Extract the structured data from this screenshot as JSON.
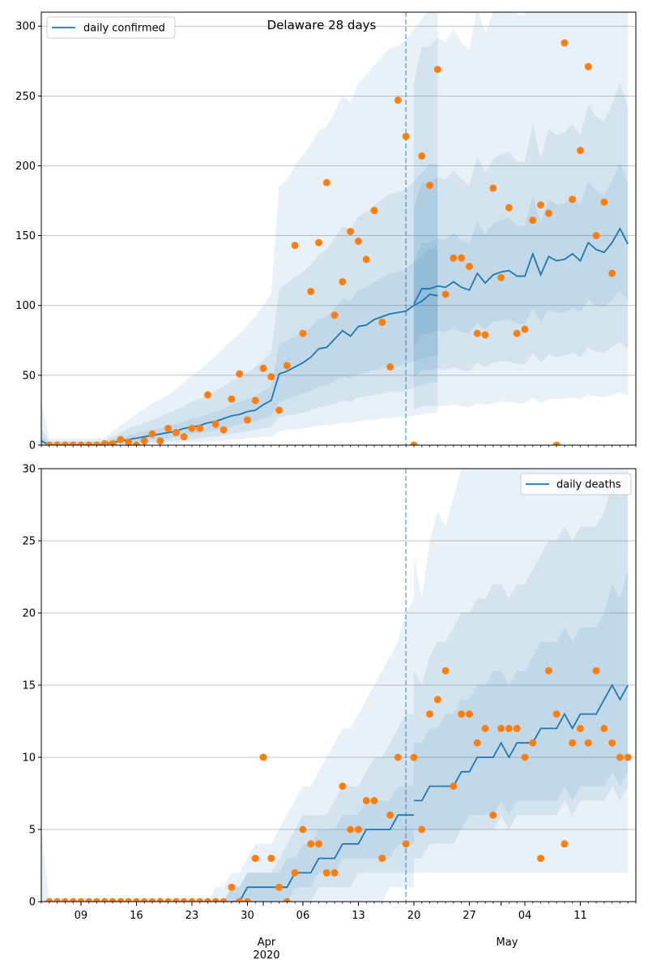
{
  "chart_data": [
    {
      "type": "line",
      "title": "Delaware 28 days",
      "legend": {
        "label": "daily confirmed",
        "placement": "upper-left"
      },
      "xlabel": "",
      "ylabel": "",
      "x_start": "2020-03-04",
      "x_end": "2020-05-18",
      "split_date": "2020-04-20",
      "ylim": [
        0,
        310
      ],
      "yticks": [
        0,
        50,
        100,
        150,
        200,
        250,
        300
      ],
      "series": [
        {
          "name": "daily confirmed",
          "line_fit": [
            3,
            0,
            0,
            0,
            0,
            0,
            0,
            0,
            1,
            2,
            3,
            4,
            5,
            6,
            7,
            8,
            9,
            10,
            12,
            13,
            14,
            16,
            17,
            19,
            21,
            22,
            24,
            25,
            29,
            32,
            51,
            53,
            56,
            59,
            63,
            69,
            70,
            76,
            82,
            78,
            85,
            86,
            90,
            92,
            94,
            95,
            96,
            100,
            103,
            108,
            107
          ],
          "line_forecast": [
            101,
            112,
            112,
            114,
            113,
            117,
            113,
            111,
            123,
            116,
            122,
            124,
            125,
            121,
            121,
            137,
            122,
            135,
            132,
            133,
            137,
            132,
            145,
            140,
            138,
            145,
            155,
            144
          ]
        }
      ],
      "observed": [
        0,
        0,
        0,
        0,
        0,
        0,
        0,
        1,
        1,
        4,
        2,
        0,
        3,
        8,
        3,
        12,
        9,
        6,
        12,
        12,
        36,
        15,
        11,
        33,
        51,
        18,
        32,
        55,
        49,
        25,
        57,
        143,
        80,
        110,
        145,
        188,
        93,
        117,
        153,
        146,
        133,
        168,
        88,
        56,
        247,
        221,
        0,
        207,
        186,
        269,
        108,
        134,
        134,
        128,
        80,
        79,
        184,
        120,
        170,
        80,
        83,
        161,
        172,
        166,
        0,
        288,
        176,
        211,
        271,
        150,
        174,
        123
      ],
      "bands": {
        "inner_lo": [
          0,
          0,
          0,
          0,
          0,
          0,
          0,
          0,
          0,
          1,
          1,
          2,
          2,
          3,
          4,
          4,
          5,
          6,
          7,
          8,
          9,
          10,
          11,
          12,
          13,
          15,
          16,
          17,
          19,
          21,
          31,
          33,
          35,
          37,
          39,
          42,
          43,
          46,
          49,
          48,
          51,
          52,
          54,
          55,
          56,
          57,
          58,
          60,
          62,
          64,
          64
        ],
        "inner_hi": [
          6,
          2,
          2,
          2,
          2,
          2,
          2,
          2,
          2,
          4,
          5,
          7,
          8,
          10,
          11,
          12,
          14,
          15,
          17,
          19,
          20,
          22,
          24,
          26,
          29,
          31,
          33,
          35,
          39,
          42,
          72,
          75,
          78,
          81,
          84,
          90,
          92,
          98,
          105,
          103,
          111,
          113,
          117,
          120,
          123,
          124,
          126,
          131,
          135,
          141,
          140
        ],
        "mid_lo": [
          0,
          0,
          0,
          0,
          0,
          0,
          0,
          0,
          0,
          0,
          0,
          1,
          1,
          1,
          2,
          2,
          3,
          3,
          4,
          4,
          5,
          6,
          6,
          7,
          8,
          9,
          10,
          11,
          12,
          13,
          20,
          21,
          22,
          23,
          25,
          27,
          28,
          30,
          32,
          31,
          34,
          35,
          36,
          37,
          38,
          38,
          39,
          41,
          43,
          45,
          45
        ],
        "mid_hi": [
          12,
          3,
          3,
          3,
          3,
          3,
          3,
          3,
          3,
          6,
          9,
          12,
          14,
          16,
          18,
          20,
          23,
          25,
          28,
          31,
          33,
          36,
          39,
          42,
          46,
          49,
          52,
          56,
          61,
          66,
          112,
          116,
          120,
          124,
          129,
          137,
          140,
          148,
          157,
          154,
          164,
          167,
          172,
          176,
          180,
          181,
          183,
          189,
          195,
          202,
          201
        ],
        "outer_lo": [
          0,
          0,
          0,
          0,
          0,
          0,
          0,
          0,
          0,
          0,
          0,
          0,
          0,
          0,
          1,
          1,
          1,
          1,
          2,
          2,
          2,
          3,
          3,
          3,
          4,
          4,
          5,
          5,
          6,
          6,
          10,
          11,
          11,
          12,
          13,
          14,
          14,
          15,
          16,
          16,
          17,
          18,
          18,
          19,
          19,
          20,
          20,
          21,
          22,
          23,
          23
        ],
        "outer_hi": [
          30,
          5,
          5,
          5,
          5,
          5,
          5,
          5,
          5,
          10,
          14,
          18,
          22,
          26,
          30,
          33,
          36,
          40,
          45,
          50,
          54,
          59,
          64,
          69,
          75,
          80,
          86,
          92,
          100,
          108,
          185,
          190,
          200,
          208,
          215,
          225,
          228,
          238,
          250,
          245,
          260,
          265,
          272,
          278,
          284,
          286,
          290,
          298,
          305,
          312,
          310
        ],
        "f_inner_lo": [
          71,
          80,
          80,
          82,
          81,
          84,
          81,
          80,
          88,
          83,
          88,
          89,
          90,
          87,
          87,
          98,
          88,
          97,
          95,
          95,
          98,
          95,
          104,
          100,
          99,
          104,
          111,
          103
        ],
        "f_inner_hi": [
          131,
          145,
          145,
          148,
          147,
          152,
          147,
          144,
          160,
          151,
          159,
          161,
          163,
          157,
          157,
          178,
          159,
          176,
          172,
          173,
          178,
          172,
          189,
          182,
          179,
          189,
          202,
          187
        ],
        "f_mid_lo": [
          48,
          54,
          54,
          55,
          54,
          56,
          54,
          53,
          59,
          56,
          59,
          60,
          60,
          58,
          58,
          66,
          59,
          65,
          63,
          64,
          66,
          63,
          70,
          67,
          66,
          70,
          74,
          69
        ],
        "f_mid_hi": [
          170,
          188,
          188,
          192,
          190,
          197,
          190,
          186,
          207,
          195,
          205,
          208,
          210,
          203,
          203,
          230,
          205,
          227,
          222,
          224,
          230,
          222,
          244,
          235,
          232,
          244,
          260,
          242
        ],
        "f_outer_lo": [
          25,
          28,
          28,
          28,
          28,
          29,
          28,
          27,
          30,
          29,
          30,
          31,
          31,
          30,
          30,
          34,
          30,
          33,
          33,
          33,
          34,
          33,
          36,
          35,
          34,
          36,
          38,
          35
        ],
        "f_outer_hi": [
          260,
          285,
          285,
          292,
          288,
          298,
          288,
          283,
          313,
          295,
          310,
          315,
          318,
          308,
          308,
          348,
          310,
          343,
          336,
          338,
          348,
          336,
          368,
          356,
          350,
          368,
          392,
          366
        ]
      }
    },
    {
      "type": "line",
      "legend": {
        "label": "daily deaths",
        "placement": "upper-right"
      },
      "xlabel": "",
      "ylabel": "",
      "ylim": [
        0,
        30
      ],
      "yticks": [
        0,
        5,
        10,
        15,
        20,
        25,
        30
      ],
      "xticks": [
        "09",
        "16",
        "23",
        "30",
        "06",
        "13",
        "20",
        "27",
        "04",
        "11"
      ],
      "month_labels": {
        "apr": "Apr",
        "year": "2020",
        "may": "May"
      },
      "series": [
        {
          "name": "daily deaths",
          "line_fit": [
            null,
            null,
            null,
            null,
            null,
            null,
            null,
            null,
            null,
            null,
            null,
            null,
            null,
            null,
            null,
            null,
            null,
            null,
            null,
            null,
            null,
            null,
            null,
            null,
            0,
            0,
            1,
            1,
            1,
            1,
            1,
            1,
            2,
            2,
            2,
            3,
            3,
            3,
            4,
            4,
            4,
            5,
            5,
            5,
            5,
            6,
            6,
            6
          ],
          "line_forecast": [
            7,
            7,
            8,
            8,
            8,
            8,
            9,
            9,
            10,
            10,
            10,
            11,
            10,
            11,
            11,
            11,
            12,
            12,
            12,
            13,
            12,
            13,
            13,
            13,
            14,
            15,
            14,
            15
          ]
        }
      ],
      "observed": [
        0,
        0,
        0,
        0,
        0,
        0,
        0,
        0,
        0,
        0,
        0,
        0,
        0,
        0,
        0,
        0,
        0,
        0,
        0,
        0,
        0,
        0,
        0,
        1,
        0,
        0,
        3,
        10,
        3,
        1,
        0,
        2,
        5,
        4,
        4,
        2,
        2,
        8,
        5,
        5,
        7,
        7,
        3,
        6,
        10,
        4,
        10,
        5,
        13,
        14,
        16,
        8,
        13,
        13,
        11,
        12,
        6,
        12,
        12,
        12,
        10,
        11,
        3,
        16,
        13,
        4,
        11,
        12,
        11,
        16,
        12,
        11,
        10,
        10
      ],
      "bands": {
        "inner_lo": [
          0,
          0,
          0,
          0,
          0,
          0,
          0,
          0,
          0,
          0,
          0,
          0,
          0,
          0,
          0,
          0,
          0,
          0,
          0,
          0,
          0,
          0,
          0,
          0,
          0,
          0,
          0,
          0,
          0,
          0,
          0,
          0,
          1,
          1,
          1,
          2,
          2,
          2,
          3,
          3,
          3,
          3,
          3,
          3,
          3,
          4,
          4,
          4
        ],
        "inner_hi": [
          0,
          0,
          0,
          0,
          0,
          0,
          0,
          0,
          0,
          0,
          0,
          0,
          0,
          0,
          0,
          0,
          0,
          0,
          0,
          0,
          0,
          0,
          0,
          0,
          1,
          1,
          2,
          2,
          2,
          2,
          2,
          3,
          3,
          4,
          4,
          5,
          5,
          5,
          6,
          6,
          6,
          7,
          7,
          7,
          7,
          8,
          8,
          8
        ],
        "mid_lo": [
          0,
          0,
          0,
          0,
          0,
          0,
          0,
          0,
          0,
          0,
          0,
          0,
          0,
          0,
          0,
          0,
          0,
          0,
          0,
          0,
          0,
          0,
          0,
          0,
          0,
          0,
          0,
          0,
          0,
          0,
          0,
          0,
          0,
          0,
          0,
          1,
          1,
          1,
          1,
          1,
          2,
          2,
          2,
          2,
          2,
          2,
          2,
          2
        ],
        "mid_hi": [
          0,
          0,
          0,
          0,
          0,
          0,
          0,
          0,
          0,
          0,
          0,
          0,
          0,
          0,
          0,
          0,
          0,
          0,
          0,
          0,
          0,
          0,
          0,
          0,
          1,
          1,
          2,
          2,
          2,
          2,
          3,
          4,
          5,
          6,
          6,
          6,
          6,
          7,
          8,
          8,
          8,
          9,
          10,
          10,
          11,
          12,
          13,
          13
        ],
        "outer_lo": [
          0,
          0,
          0,
          0,
          0,
          0,
          0,
          0,
          0,
          0,
          0,
          0,
          0,
          0,
          0,
          0,
          0,
          0,
          0,
          0,
          0,
          0,
          0,
          0,
          0,
          0,
          0,
          0,
          0,
          0,
          0,
          0,
          0,
          0,
          0,
          0,
          0,
          0,
          0,
          0,
          0,
          0,
          0,
          0,
          1,
          1,
          1,
          1
        ],
        "outer_hi": [
          5,
          0,
          0,
          0,
          0,
          0,
          0,
          0,
          0,
          0,
          0,
          0,
          0,
          0,
          0,
          0,
          0,
          0,
          0,
          0,
          0,
          0,
          1,
          1,
          2,
          2,
          3,
          4,
          4,
          4,
          5,
          6,
          7,
          8,
          8,
          9,
          10,
          11,
          12,
          12,
          13,
          14,
          15,
          16,
          17,
          18,
          20,
          21
        ],
        "f_inner_lo": [
          5,
          5,
          5,
          5,
          5,
          5,
          5,
          6,
          6,
          6,
          6,
          7,
          6,
          7,
          7,
          7,
          7,
          7,
          7,
          8,
          7,
          8,
          8,
          8,
          8,
          9,
          8,
          9
        ],
        "f_inner_hi": [
          11,
          11,
          12,
          12,
          13,
          13,
          14,
          14,
          15,
          15,
          16,
          16,
          15,
          16,
          16,
          17,
          18,
          18,
          18,
          19,
          18,
          19,
          19,
          19,
          20,
          22,
          21,
          23
        ],
        "f_mid_lo": [
          3,
          3,
          4,
          4,
          4,
          4,
          5,
          5,
          5,
          5,
          5,
          6,
          5,
          6,
          6,
          6,
          6,
          6,
          6,
          7,
          6,
          7,
          7,
          7,
          7,
          8,
          7,
          8
        ],
        "f_mid_hi": [
          16,
          15,
          17,
          18,
          18,
          19,
          20,
          20,
          21,
          21,
          22,
          22,
          21,
          22,
          22,
          23,
          24,
          25,
          25,
          26,
          25,
          26,
          26,
          26,
          27,
          29,
          28,
          30
        ],
        "f_outer_lo": [
          2,
          2,
          2,
          2,
          2,
          2,
          2,
          2,
          2,
          2,
          2,
          2,
          2,
          2,
          2,
          2,
          2,
          2,
          2,
          2,
          2,
          2,
          2,
          2,
          2,
          2,
          2,
          2
        ],
        "f_outer_hi": [
          24,
          21,
          25,
          27,
          26,
          28,
          30,
          32,
          31,
          30,
          32,
          33,
          32,
          33,
          32,
          34,
          35,
          36,
          37,
          38,
          37,
          38,
          38,
          38,
          39,
          41,
          40,
          42
        ]
      }
    }
  ],
  "colors": {
    "line": "#1f77b4",
    "observed": "#ff7f0e",
    "band": "#1f77b4",
    "grid": "#b0b0b0",
    "split_line": "#1f77b4"
  }
}
